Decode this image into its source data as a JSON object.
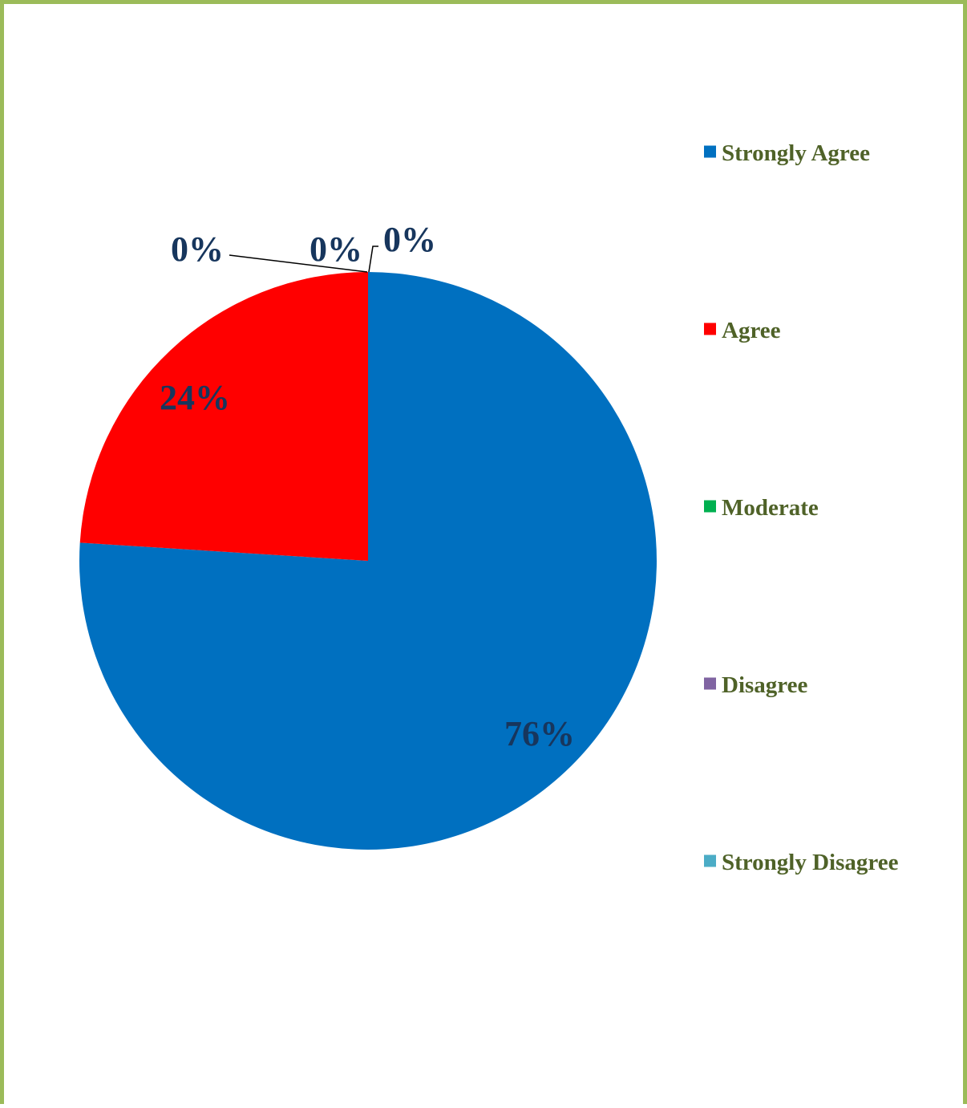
{
  "chart_data": {
    "type": "pie",
    "start_angle": "12 o'clock",
    "direction": "clockwise",
    "legend_position": "right",
    "slices": [
      {
        "name": "Strongly Agree",
        "value": 76,
        "label": "76%",
        "color": "#0070C0"
      },
      {
        "name": "Agree",
        "value": 24,
        "label": "24%",
        "color": "#FF0000"
      },
      {
        "name": "Moderate",
        "value": 0,
        "label": "0%",
        "color": "#00B050"
      },
      {
        "name": "Disagree",
        "value": 0,
        "label": "0%",
        "color": "#8064A2"
      },
      {
        "name": "Strongly Disagree",
        "value": 0,
        "label": "0%",
        "color": "#4BACC6"
      }
    ]
  },
  "colors": {
    "frame_border": "#9BBB59",
    "label_text": "#17365D",
    "legend_text": "#4F6228"
  }
}
